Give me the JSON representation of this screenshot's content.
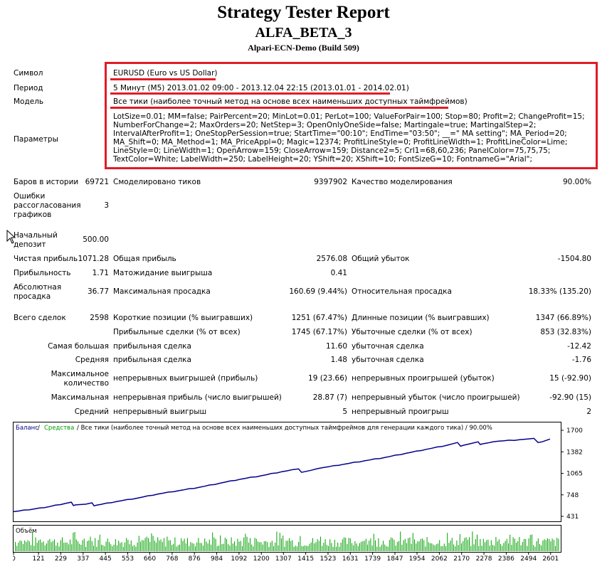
{
  "header": {
    "title": "Strategy Tester Report",
    "expert": "ALFA_BETA_3",
    "server": "Alpari-ECN-Demo (Build 509)"
  },
  "info": {
    "symbol_label": "Символ",
    "symbol_value": "EURUSD (Euro vs US Dollar)",
    "period_label": "Период",
    "period_value": "5 Минут (M5) 2013.01.02 09:00 - 2013.12.04 22:15 (2013.01.01 - 2014.02.01)",
    "model_label": "Модель",
    "model_value": "Все тики (наиболее точный метод на основе всех наименьших доступных таймфреймов)",
    "params_label": "Параметры",
    "params_value": "LotSize=0.01; MM=false; PairPercent=20; MinLot=0.01; PerLot=100; ValueForPair=100; Stop=80; Profit=2; ChangeProfit=15; NumberForChange=2; MaxOrders=20; NetStep=3; OpenOnlyOneSide=false; Martingale=true; MartingalStep=2; IntervalAfterProfit=1; OneStopPerSession=true; StartTime=\"00:10\"; EndTime=\"03:50\"; __=\" MA setting\"; MA_Period=20; MA_Shift=0; MA_Method=1; MA_PriceAppl=0; Magic=12374; ProfitLineStyle=0; ProfitLineWidth=1; ProfitLineColor=Lime; LineStyle=0; LineWidth=1; OpenArrow=159; CloseArrow=159; Distance2=5; Crl1=68,60,236; PanelColor=75,75,75; TextColor=White; LabelWidth=250; LabelHeight=20; YShift=20; XShift=10; FontSizeG=10; FontnameG=\"Arial\";"
  },
  "stats": {
    "bars_label": "Баров в истории",
    "bars_value": "69721",
    "ticks_label": "Смоделировано тиков",
    "ticks_value": "9397902",
    "quality_label": "Качество моделирования",
    "quality_value": "90.00%",
    "errors_label_1": "Ошибки",
    "errors_label_2": "рассогласования",
    "errors_label_3": "графиков",
    "errors_value": "3",
    "deposit_label_1": "Начальный",
    "deposit_label_2": "депозит",
    "deposit_value": "500.00",
    "net_label": "Чистая прибыль",
    "net_value": "1071.28",
    "gross_profit_label": "Общая прибыль",
    "gross_profit_value": "2576.08",
    "gross_loss_label": "Общий убыток",
    "gross_loss_value": "-1504.80",
    "pf_label": "Прибыльность",
    "pf_value": "1.71",
    "expected_label": "Матожидание выигрыша",
    "expected_value": "0.41",
    "abs_dd_label_1": "Абсолютная",
    "abs_dd_label_2": "просадка",
    "abs_dd_value": "36.77",
    "max_dd_label": "Максимальная просадка",
    "max_dd_value": "160.69 (9.44%)",
    "rel_dd_label": "Относительная просадка",
    "rel_dd_value": "18.33% (135.20)",
    "trades_label": "Всего сделок",
    "trades_value": "2598",
    "short_label": "Короткие позиции (% выигравших)",
    "short_value": "1251 (67.47%)",
    "long_label": "Длинные позиции (% выигравших)",
    "long_value": "1347 (66.89%)",
    "profit_trades_label": "Прибыльные сделки (% от всех)",
    "profit_trades_value": "1745 (67.17%)",
    "loss_trades_label": "Убыточные сделки (% от всех)",
    "loss_trades_value": "853 (32.83%)",
    "largest_label": "Самая большая",
    "largest_profit_label": "прибыльная сделка",
    "largest_profit_value": "11.60",
    "largest_loss_label": "убыточная сделка",
    "largest_loss_value": "-12.42",
    "average_label": "Средняя",
    "average_profit_label": "прибыльная сделка",
    "average_profit_value": "1.48",
    "average_loss_label": "убыточная сделка",
    "average_loss_value": "-1.76",
    "max_count_label_1": "Максимальное",
    "max_count_label_2": "количество",
    "cons_wins_label": "непрерывных выигрышей (прибыль)",
    "cons_wins_value": "19 (23.66)",
    "cons_losses_label": "непрерывных проигрышей (убыток)",
    "cons_losses_value": "15 (-92.90)",
    "max_label": "Максимальная",
    "cons_profit_label": "непрерывная прибыль (число выигрышей)",
    "cons_profit_value": "28.87 (7)",
    "cons_loss_label": "непрерывный убыток (число проигрышей)",
    "cons_loss_value": "-92.90 (15)",
    "avg_label": "Средний",
    "avg_wins_label": "непрерывный выигрыш",
    "avg_wins_value": "5",
    "avg_losses_label": "непрерывный проигрыш",
    "avg_losses_value": "2"
  },
  "colors": {
    "red_box": "#e11c24",
    "balance": "#00008b",
    "equity": "#00a000",
    "volume": "#00a000"
  },
  "chart_data": {
    "type": "line",
    "legend": {
      "balance": "Баланс",
      "sep1": " / ",
      "equity": "Средства",
      "rest": " / Все тики (наиболее точный метод на основе всех наименьших доступных таймфреймов для генерации каждого тика) / 90.00%"
    },
    "yticks": [
      "1700",
      "1382",
      "1065",
      "748",
      "431"
    ],
    "ylim": [
      431,
      1700
    ],
    "xticks": [
      "0",
      "121",
      "229",
      "337",
      "445",
      "553",
      "660",
      "768",
      "876",
      "984",
      "1092",
      "1200",
      "1307",
      "1415",
      "1523",
      "1631",
      "1739",
      "1847",
      "1954",
      "2062",
      "2170",
      "2278",
      "2386",
      "2494",
      "2601"
    ],
    "xlim": [
      0,
      2650
    ],
    "series": [
      {
        "name": "Баланс",
        "color": "#00008b",
        "x": [
          0,
          150,
          280,
          290,
          300,
          350,
          380,
          390,
          400,
          500,
          600,
          700,
          800,
          900,
          1000,
          1100,
          1200,
          1300,
          1380,
          1395,
          1410,
          1500,
          1600,
          1700,
          1800,
          1900,
          2000,
          2100,
          2150,
          2165,
          2180,
          2250,
          2260,
          2270,
          2350,
          2450,
          2520,
          2540,
          2560,
          2598
        ],
        "y": [
          500,
          560,
          640,
          590,
          600,
          610,
          630,
          585,
          595,
          650,
          700,
          760,
          810,
          860,
          920,
          980,
          1030,
          1090,
          1130,
          1080,
          1090,
          1150,
          1200,
          1250,
          1300,
          1360,
          1420,
          1480,
          1520,
          1465,
          1480,
          1530,
          1490,
          1500,
          1540,
          1560,
          1580,
          1520,
          1530,
          1571
        ]
      }
    ],
    "volume_label": "Объём"
  }
}
